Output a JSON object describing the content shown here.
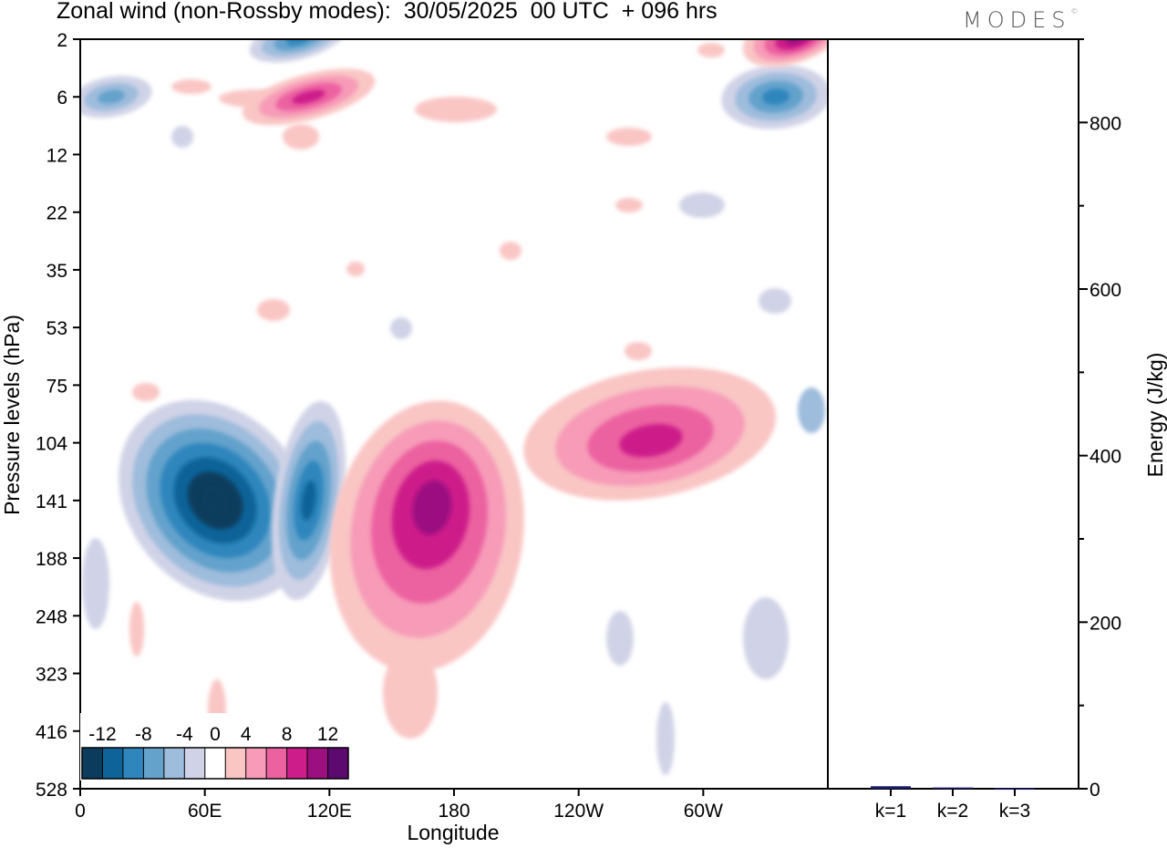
{
  "title": "Zonal wind (non-Rossby modes):  30/05/2025  00 UTC  + 096 hrs",
  "logo": "MODES",
  "chart_data": [
    {
      "type": "heatmap",
      "title": "Zonal wind (non-Rossby modes):  30/05/2025  00 UTC  + 096 hrs",
      "xlabel": "Longitude",
      "ylabel": "Pressure levels (hPa)",
      "x_ticks": [
        "0",
        "60E",
        "120E",
        "180",
        "120W",
        "60W"
      ],
      "x_tick_values": [
        0,
        60,
        120,
        180,
        240,
        300
      ],
      "xlim": [
        0,
        360
      ],
      "y_ticks": [
        "2",
        "6",
        "12",
        "22",
        "35",
        "53",
        "75",
        "104",
        "141",
        "188",
        "248",
        "323",
        "416",
        "528"
      ],
      "colorbar": {
        "labels": [
          "-12",
          "-8",
          "-4",
          "0",
          "4",
          "8",
          "12"
        ],
        "levels": [
          -14,
          -12,
          -10,
          -8,
          -6,
          -4,
          -2,
          2,
          4,
          6,
          8,
          10,
          12,
          14
        ],
        "colors": [
          "#0b3c5d",
          "#0e6398",
          "#2f86bd",
          "#64a2cc",
          "#9ebcdc",
          "#d0d3e7",
          "#ffffff",
          "#f9c6c4",
          "#f79bb8",
          "#ec62a0",
          "#cd1d8a",
          "#9b0f81",
          "#5c0970"
        ]
      },
      "features": [
        {
          "sign": "negative",
          "lon": 65,
          "level": "141",
          "peak": -14
        },
        {
          "sign": "negative",
          "lon": 110,
          "level": "141",
          "peak": -10
        },
        {
          "sign": "positive",
          "lon": 170,
          "level": "141",
          "peak": 10
        },
        {
          "sign": "positive",
          "lon": 275,
          "level": "104",
          "peak": 8
        },
        {
          "sign": "negative",
          "lon": 335,
          "level": "6",
          "peak": -8
        },
        {
          "sign": "positive",
          "lon": 345,
          "level": "2",
          "peak": 10
        },
        {
          "sign": "positive",
          "lon": 110,
          "level": "6",
          "peak": 8
        },
        {
          "sign": "negative",
          "lon": 105,
          "level": "2",
          "peak": -8
        },
        {
          "sign": "negative",
          "lon": 15,
          "level": "6",
          "peak": -6
        }
      ]
    },
    {
      "type": "bar",
      "categories": [
        "k=1",
        "k=2",
        "k=3"
      ],
      "values": [
        3,
        1.5,
        0.5
      ],
      "ylabel": "Energy (J/kg)",
      "ylim": [
        0,
        900
      ],
      "y_ticks": [
        "0",
        "200",
        "400",
        "600",
        "800"
      ],
      "bar_color": "#1a1a6e"
    }
  ]
}
